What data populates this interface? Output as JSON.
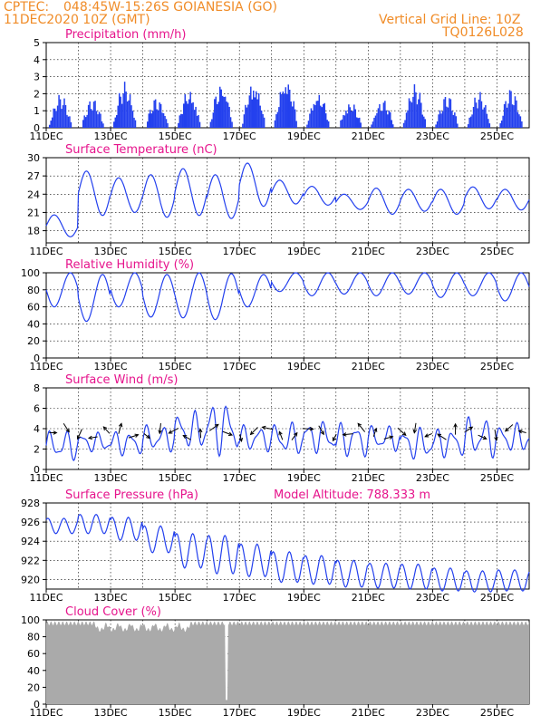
{
  "header": {
    "source": "CPTEC:",
    "location": "048:45W-15:26S   GOIANESIA (GO)",
    "run_time": "11DEC2020 10Z (GMT)",
    "grid_note": "Vertical Grid Line: 10Z",
    "model_code": "TQ0126L028",
    "model_altitude": "Model Altitude: 788.333 m"
  },
  "colors": {
    "header": "#f08c28",
    "panel_title": "#e6148c",
    "series": "#2340ee",
    "cloud": "#aaaaaa",
    "arrow": "#000000"
  },
  "chart_data": [
    {
      "type": "bar",
      "title": "Precipitation (mm/h)",
      "ylim": [
        0,
        5
      ],
      "yticks": [
        "0",
        "1",
        "2",
        "3",
        "4",
        "5"
      ],
      "xticks": [
        "11DEC",
        "13DEC",
        "15DEC",
        "17DEC",
        "19DEC",
        "21DEC",
        "23DEC",
        "25DEC"
      ],
      "grid": true,
      "day_values": [
        1.6,
        1.4,
        2.2,
        1.5,
        1.9,
        2.3,
        2.4,
        2.6,
        1.8,
        1.3,
        1.4,
        2.1,
        1.6,
        1.7,
        1.9
      ]
    },
    {
      "type": "line",
      "title": "Surface Temperature (nC)",
      "ylim": [
        16,
        30
      ],
      "yticks": [
        "18",
        "21",
        "24",
        "27",
        "30"
      ],
      "grid": true,
      "daily_min": [
        17,
        20.5,
        21,
        20.2,
        20.5,
        20,
        22,
        22.4,
        22.2,
        21.5,
        20.7,
        21.2,
        20.7,
        21.6,
        21.4
      ],
      "daily_max": [
        20.6,
        27.8,
        26.7,
        27.2,
        28.2,
        27.2,
        29.1,
        26.3,
        25.3,
        24,
        25,
        24.8,
        24.8,
        25.2,
        24.8
      ]
    },
    {
      "type": "line",
      "title": "Relative Humidity (%)",
      "ylim": [
        0,
        100
      ],
      "yticks": [
        "0",
        "20",
        "40",
        "60",
        "80",
        "100"
      ],
      "grid": true,
      "daily_min": [
        60,
        43,
        60,
        48,
        47,
        45,
        60,
        78,
        73,
        75,
        73,
        75,
        71,
        73,
        67
      ],
      "daily_max": [
        100,
        98,
        100,
        98,
        100,
        99,
        98,
        100,
        100,
        100,
        100,
        100,
        100,
        100,
        100
      ]
    },
    {
      "type": "line",
      "title": "Surface Wind (m/s)",
      "ylim": [
        0,
        8
      ],
      "yticks": [
        "0",
        "2",
        "4",
        "6",
        "8"
      ],
      "grid": true,
      "daily_min": [
        0.8,
        1.6,
        1.3,
        1.7,
        1.8,
        1.3,
        1.7,
        1.3,
        1.5,
        1.1,
        1.7,
        0.8,
        1.1,
        1.1,
        1.5
      ],
      "daily_max": [
        3.9,
        3.7,
        3.9,
        4.4,
        5.8,
        6.9,
        4.4,
        4.7,
        4.9,
        4.7,
        4.4,
        4.2,
        4.2,
        5.2,
        4.6
      ],
      "arrow_count": 36
    },
    {
      "type": "line",
      "title": "Surface Pressure (hPa)",
      "ylim": [
        919,
        928
      ],
      "yticks": [
        "920",
        "922",
        "924",
        "926",
        "928"
      ],
      "grid": true,
      "daily_mid": [
        925.6,
        925.8,
        925.3,
        924.2,
        923.0,
        922.6,
        922.0,
        921.3,
        921.0,
        920.6,
        920.4,
        920.3,
        920.0,
        919.8,
        919.9
      ],
      "daily_amp": [
        0.8,
        1.0,
        1.2,
        1.4,
        1.8,
        2.0,
        1.7,
        1.6,
        1.5,
        1.4,
        1.3,
        1.3,
        1.2,
        1.1,
        1.1
      ]
    },
    {
      "type": "area",
      "title": "Cloud Cover (%)",
      "ylim": [
        0,
        100
      ],
      "yticks": [
        "0",
        "20",
        "40",
        "60",
        "80",
        "100"
      ],
      "grid": true,
      "typical_value": 96,
      "minimum_value": 5
    }
  ]
}
